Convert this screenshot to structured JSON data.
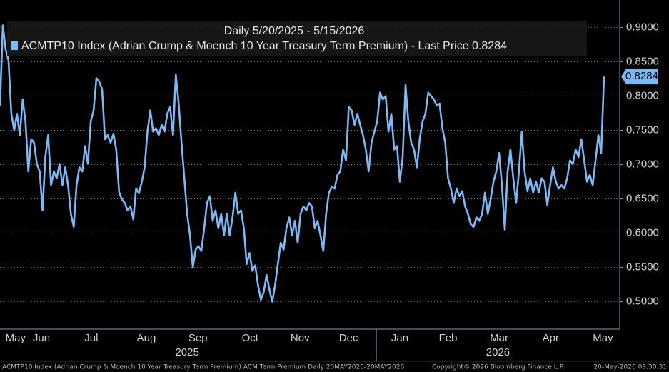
{
  "chart_data": {
    "type": "line",
    "subtitle": "Daily 5/20/2025 - 5/15/2026",
    "series": [
      {
        "name": "ACMTP10 Index (Adrian Crump & Moench 10 Year Treasury Term Premium) - Last Price 0.8284",
        "color": "#7cb9f4",
        "values": [
          0.786,
          0.903,
          0.868,
          0.852,
          0.774,
          0.75,
          0.774,
          0.743,
          0.795,
          0.763,
          0.69,
          0.737,
          0.732,
          0.701,
          0.69,
          0.633,
          0.711,
          0.743,
          0.67,
          0.69,
          0.68,
          0.701,
          0.67,
          0.696,
          0.67,
          0.628,
          0.609,
          0.67,
          0.696,
          0.69,
          0.727,
          0.701,
          0.763,
          0.779,
          0.826,
          0.821,
          0.81,
          0.737,
          0.743,
          0.732,
          0.745,
          0.722,
          0.66,
          0.649,
          0.644,
          0.633,
          0.639,
          0.62,
          0.665,
          0.658,
          0.675,
          0.696,
          0.748,
          0.779,
          0.748,
          0.753,
          0.743,
          0.758,
          0.748,
          0.774,
          0.784,
          0.743,
          0.831,
          0.79,
          0.732,
          0.68,
          0.628,
          0.597,
          0.55,
          0.576,
          0.581,
          0.574,
          0.607,
          0.644,
          0.654,
          0.618,
          0.633,
          0.607,
          0.628,
          0.597,
          0.628,
          0.597,
          0.623,
          0.659,
          0.628,
          0.633,
          0.607,
          0.555,
          0.571,
          0.545,
          0.553,
          0.524,
          0.503,
          0.514,
          0.539,
          0.518,
          0.5,
          0.524,
          0.555,
          0.586,
          0.576,
          0.607,
          0.623,
          0.597,
          0.618,
          0.586,
          0.628,
          0.639,
          0.633,
          0.644,
          0.639,
          0.607,
          0.618,
          0.597,
          0.574,
          0.628,
          0.659,
          0.667,
          0.665,
          0.685,
          0.69,
          0.722,
          0.706,
          0.784,
          0.779,
          0.758,
          0.774,
          0.758,
          0.743,
          0.722,
          0.69,
          0.732,
          0.748,
          0.763,
          0.805,
          0.795,
          0.8,
          0.748,
          0.774,
          0.722,
          0.727,
          0.675,
          0.711,
          0.816,
          0.763,
          0.732,
          0.722,
          0.696,
          0.737,
          0.763,
          0.774,
          0.805,
          0.8,
          0.795,
          0.786,
          0.789,
          0.753,
          0.732,
          0.68,
          0.665,
          0.644,
          0.665,
          0.654,
          0.661,
          0.639,
          0.628,
          0.613,
          0.609,
          0.623,
          0.618,
          0.628,
          0.659,
          0.628,
          0.649,
          0.675,
          0.69,
          0.717,
          0.67,
          0.605,
          0.69,
          0.722,
          0.68,
          0.644,
          0.69,
          0.748,
          0.69,
          0.661,
          0.68,
          0.659,
          0.675,
          0.659,
          0.68,
          0.675,
          0.641,
          0.67,
          0.696,
          0.675,
          0.665,
          0.67,
          0.665,
          0.68,
          0.706,
          0.701,
          0.722,
          0.711,
          0.737,
          0.706,
          0.675,
          0.685,
          0.67,
          0.706,
          0.743,
          0.717,
          0.8284
        ]
      }
    ],
    "last_price": 0.8284,
    "xlim": [
      0,
      213
    ],
    "xticks": [
      {
        "value": 5.5,
        "label": "May"
      },
      {
        "value": 14.6,
        "label": "Jun"
      },
      {
        "value": 32.2,
        "label": "Jul"
      },
      {
        "value": 51.6,
        "label": "Aug"
      },
      {
        "value": 69.8,
        "label": "Sep"
      },
      {
        "value": 88.2,
        "label": "Oct"
      },
      {
        "value": 105.8,
        "label": "Nov"
      },
      {
        "value": 122.9,
        "label": "Dec"
      },
      {
        "value": 141,
        "label": "Jan"
      },
      {
        "value": 158,
        "label": "Feb"
      },
      {
        "value": 176,
        "label": "Mar"
      },
      {
        "value": 194.2,
        "label": "Apr"
      },
      {
        "value": 212.6,
        "label": "May"
      }
    ],
    "year_labels": [
      {
        "value": 66,
        "label": "2025"
      },
      {
        "value": 175.6,
        "label": "2026"
      }
    ],
    "year_divider": 132.7,
    "ylim": [
      0.46,
      0.94
    ],
    "yticks": [
      {
        "value": 0.5,
        "label": "0.5000"
      },
      {
        "value": 0.55,
        "label": "0.5500"
      },
      {
        "value": 0.6,
        "label": "0.6000"
      },
      {
        "value": 0.65,
        "label": "0.6500"
      },
      {
        "value": 0.7,
        "label": "0.7000"
      },
      {
        "value": 0.75,
        "label": "0.7500"
      },
      {
        "value": 0.8,
        "label": "0.8000"
      },
      {
        "value": 0.85,
        "label": "0.8500"
      },
      {
        "value": 0.9,
        "label": "0.9000"
      }
    ],
    "grid": true,
    "footer": {
      "left": "ACMTP10 Index (Adrian Crump & Moench 10 Year Treasury Term Premium) ACM Term Premium Daily 20MAY2025-20MAY2026",
      "center": "Copyright© 2026 Bloomberg Finance L.P.",
      "right": "20-May-2026 09:30:31"
    }
  }
}
